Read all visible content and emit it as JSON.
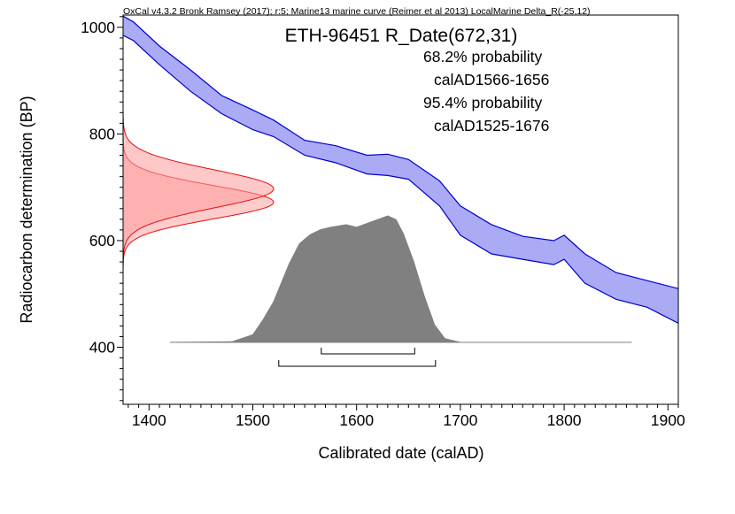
{
  "chart_data": {
    "type": "area",
    "header": "OxCal v4.3.2 Bronk Ramsey (2017); r:5; Marine13 marine curve (Reimer et al 2013) LocalMarine Delta_R(-25,12)",
    "title": "ETH-96451 R_Date(672,31)",
    "probability_ranges": [
      {
        "label": "68.2% probability",
        "range": "calAD1566-1656",
        "from": 1566,
        "to": 1656
      },
      {
        "label": "95.4% probability",
        "range": "calAD1525-1676",
        "from": 1525,
        "to": 1676
      }
    ],
    "xlabel": "Calibrated date (calAD)",
    "ylabel": "Radiocarbon determination (BP)",
    "xlim": [
      1375,
      1910
    ],
    "ylim": [
      293,
      1023
    ],
    "xticks": [
      1400,
      1500,
      1600,
      1700,
      1800,
      1900
    ],
    "yticks": [
      400,
      600,
      800,
      1000
    ],
    "radiocarbon_date": {
      "mean": 672,
      "sd": 31
    },
    "calibration_curve": {
      "name": "Marine13 + LocalMarine Delta_R(-25,12)",
      "x": [
        1375,
        1385,
        1410,
        1440,
        1470,
        1500,
        1520,
        1550,
        1580,
        1610,
        1630,
        1650,
        1680,
        1700,
        1730,
        1760,
        1790,
        1800,
        1820,
        1850,
        1880,
        1910
      ],
      "upper": [
        1021,
        1010,
        965,
        920,
        872,
        845,
        826,
        788,
        778,
        760,
        762,
        752,
        712,
        665,
        630,
        608,
        600,
        610,
        575,
        540,
        525,
        510
      ],
      "lower": [
        985,
        975,
        930,
        880,
        838,
        808,
        795,
        760,
        746,
        725,
        722,
        715,
        665,
        610,
        575,
        565,
        555,
        565,
        520,
        490,
        475,
        445
      ]
    },
    "posterior_distribution": {
      "x": [
        1420,
        1480,
        1500,
        1510,
        1520,
        1528,
        1535,
        1545,
        1555,
        1565,
        1575,
        1590,
        1600,
        1610,
        1620,
        1630,
        1638,
        1645,
        1655,
        1665,
        1675,
        1685,
        1700,
        1865
      ],
      "density": [
        0,
        0.005,
        0.06,
        0.18,
        0.32,
        0.48,
        0.62,
        0.78,
        0.85,
        0.89,
        0.91,
        0.93,
        0.91,
        0.94,
        0.97,
        1.0,
        0.97,
        0.86,
        0.64,
        0.37,
        0.14,
        0.03,
        0,
        0
      ]
    }
  }
}
